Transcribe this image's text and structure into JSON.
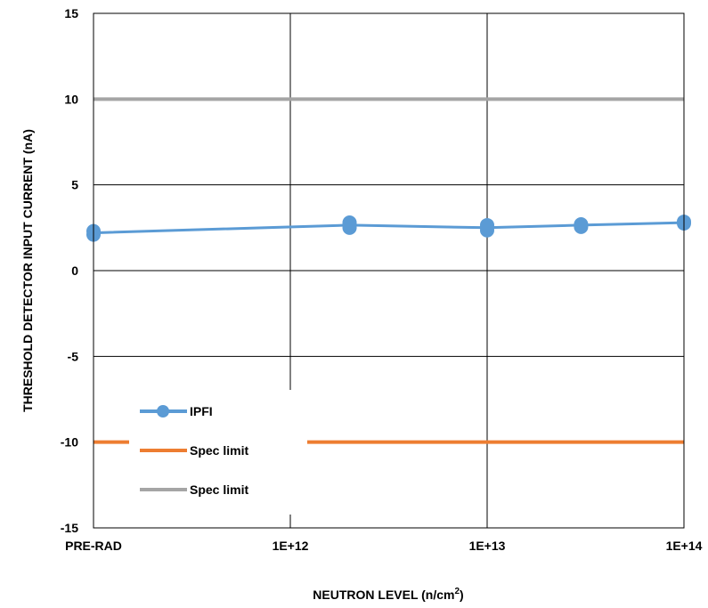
{
  "chart_data": {
    "type": "line",
    "xlabel_main": "NEUTRON LEVEL (n/cm",
    "xlabel_sup": "2",
    "xlabel_close": ")",
    "ylabel": "THRESHOLD DETECTOR INPUT CURRENT (nA)",
    "x_scale": "log",
    "x_ticks": [
      {
        "label": "PRE-RAD",
        "value": 100000000000.0
      },
      {
        "label": "1E+12",
        "value": 1000000000000.0
      },
      {
        "label": "1E+13",
        "value": 10000000000000.0
      },
      {
        "label": "1E+14",
        "value": 100000000000000.0
      }
    ],
    "xlim": [
      100000000000.0,
      100000000000000.0
    ],
    "ylim": [
      -15,
      15
    ],
    "y_ticks": [
      "15",
      "10",
      "5",
      "0",
      "-5",
      "-10",
      "-15"
    ],
    "y_tick_values": [
      15,
      10,
      5,
      0,
      -5,
      -10,
      -15
    ],
    "grid": true,
    "legend_position": "lower-left",
    "series": [
      {
        "name": "IPFI",
        "color": "#5b9bd5",
        "marker": "circle",
        "points": [
          {
            "x": 100000000000.0,
            "y": 2.1
          },
          {
            "x": 100000000000.0,
            "y": 2.3
          },
          {
            "x": 2000000000000.0,
            "y": 2.5
          },
          {
            "x": 2000000000000.0,
            "y": 2.7
          },
          {
            "x": 2000000000000.0,
            "y": 2.8
          },
          {
            "x": 10000000000000.0,
            "y": 2.35
          },
          {
            "x": 10000000000000.0,
            "y": 2.5
          },
          {
            "x": 10000000000000.0,
            "y": 2.65
          },
          {
            "x": 30000000000000.0,
            "y": 2.55
          },
          {
            "x": 30000000000000.0,
            "y": 2.7
          },
          {
            "x": 100000000000000.0,
            "y": 2.75
          },
          {
            "x": 100000000000000.0,
            "y": 2.85
          }
        ],
        "line": [
          {
            "x": 100000000000.0,
            "y": 2.2
          },
          {
            "x": 2000000000000.0,
            "y": 2.65
          },
          {
            "x": 10000000000000.0,
            "y": 2.5
          },
          {
            "x": 30000000000000.0,
            "y": 2.65
          },
          {
            "x": 100000000000000.0,
            "y": 2.8
          }
        ]
      },
      {
        "name": "Spec limit",
        "color": "#ed7d31",
        "y": -10
      },
      {
        "name": "Spec limit",
        "color": "#a5a5a5",
        "y": 10
      }
    ]
  }
}
